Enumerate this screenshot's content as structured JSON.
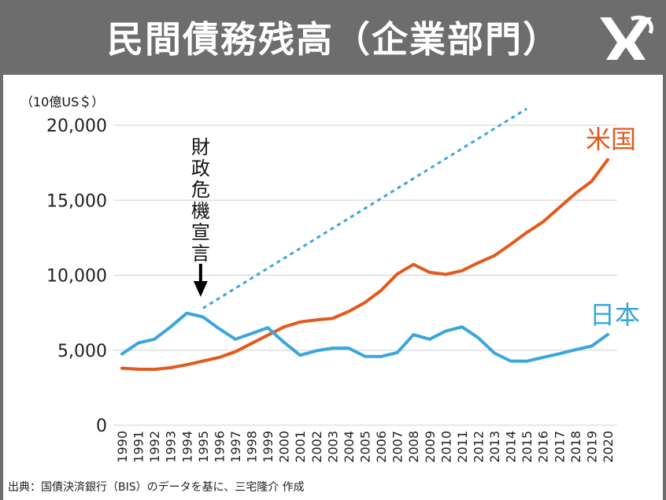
{
  "header": {
    "title": "民間債務残高（企業部門）",
    "logo_icon": "publisher-logo-icon",
    "background_color": "#6d6d6d"
  },
  "source_note": "出典：国債決済銀行（BIS）のデータを基に、三宅隆介 作成",
  "chart_data": {
    "type": "line",
    "unit_label": "（10億US＄）",
    "x": [
      1990,
      1991,
      1992,
      1993,
      1994,
      1995,
      1996,
      1997,
      1998,
      1999,
      2000,
      2001,
      2002,
      2003,
      2004,
      2005,
      2006,
      2007,
      2008,
      2009,
      2010,
      2011,
      2012,
      2013,
      2014,
      2015,
      2016,
      2017,
      2018,
      2019,
      2020
    ],
    "x_tick_labels": [
      "1990",
      "1991",
      "1992",
      "1993",
      "1994",
      "1995",
      "1996",
      "1997",
      "1998",
      "1999",
      "2000",
      "2001",
      "2002",
      "2003",
      "2004",
      "2005",
      "2006",
      "2007",
      "2008",
      "2009",
      "2010",
      "2011",
      "2012",
      "2013",
      "2014",
      "2015",
      "2016",
      "2017",
      "2018",
      "2019",
      "2020"
    ],
    "ylim": [
      0,
      20000
    ],
    "y_ticks": [
      0,
      5000,
      10000,
      15000,
      20000
    ],
    "y_tick_labels": [
      "0",
      "5,000",
      "10,000",
      "15,000",
      "20,000"
    ],
    "grid": "horizontal",
    "series": [
      {
        "name": "米国",
        "color": "#e25a1c",
        "values": [
          3800,
          3730,
          3720,
          3830,
          4030,
          4280,
          4520,
          4900,
          5450,
          6000,
          6550,
          6880,
          7020,
          7120,
          7580,
          8180,
          8980,
          10080,
          10720,
          10190,
          10050,
          10300,
          10830,
          11300,
          12050,
          12850,
          13550,
          14500,
          15450,
          16250,
          17700
        ]
      },
      {
        "name": "日本",
        "color": "#39a6dc",
        "values": [
          4750,
          5480,
          5730,
          6550,
          7470,
          7220,
          6430,
          5730,
          6110,
          6500,
          5530,
          4660,
          4960,
          5140,
          5140,
          4590,
          4580,
          4840,
          6030,
          5730,
          6280,
          6550,
          5830,
          4810,
          4280,
          4270,
          4520,
          4760,
          5030,
          5270,
          6040
        ]
      }
    ],
    "trend_line": {
      "style": "dotted",
      "color": "#39a6dc",
      "from": {
        "x": 1995,
        "y": 7800
      },
      "to": {
        "x": 2015,
        "y": 21100
      }
    },
    "annotation": {
      "text": "財政危機宣言",
      "x": 1995,
      "arrow_color": "#000000"
    }
  }
}
